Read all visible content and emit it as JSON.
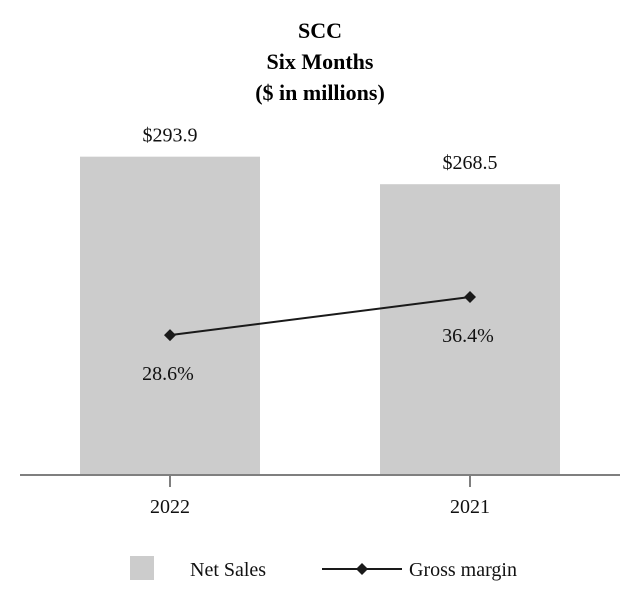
{
  "colors": {
    "bar": "#cccccc",
    "line": "#1a1a1a",
    "axis": "#7f7f7f",
    "text": "#111111"
  },
  "chart_data": {
    "type": "bar",
    "title_lines": [
      "SCC",
      "Six Months",
      "($ in millions)"
    ],
    "categories": [
      "2022",
      "2021"
    ],
    "series": [
      {
        "name": "Net Sales",
        "kind": "bar",
        "values": [
          293.9,
          268.5
        ],
        "labels": [
          "$293.9",
          "$268.5"
        ]
      },
      {
        "name": "Gross margin",
        "kind": "line",
        "marker": "diamond",
        "values": [
          28.6,
          36.4
        ],
        "labels": [
          "28.6%",
          "36.4%"
        ]
      }
    ],
    "bar_ylim": [
      0,
      325
    ],
    "line_ylim": [
      0,
      72
    ],
    "legend": {
      "position": "bottom-center",
      "items": [
        "Net Sales",
        "Gross margin"
      ]
    }
  }
}
